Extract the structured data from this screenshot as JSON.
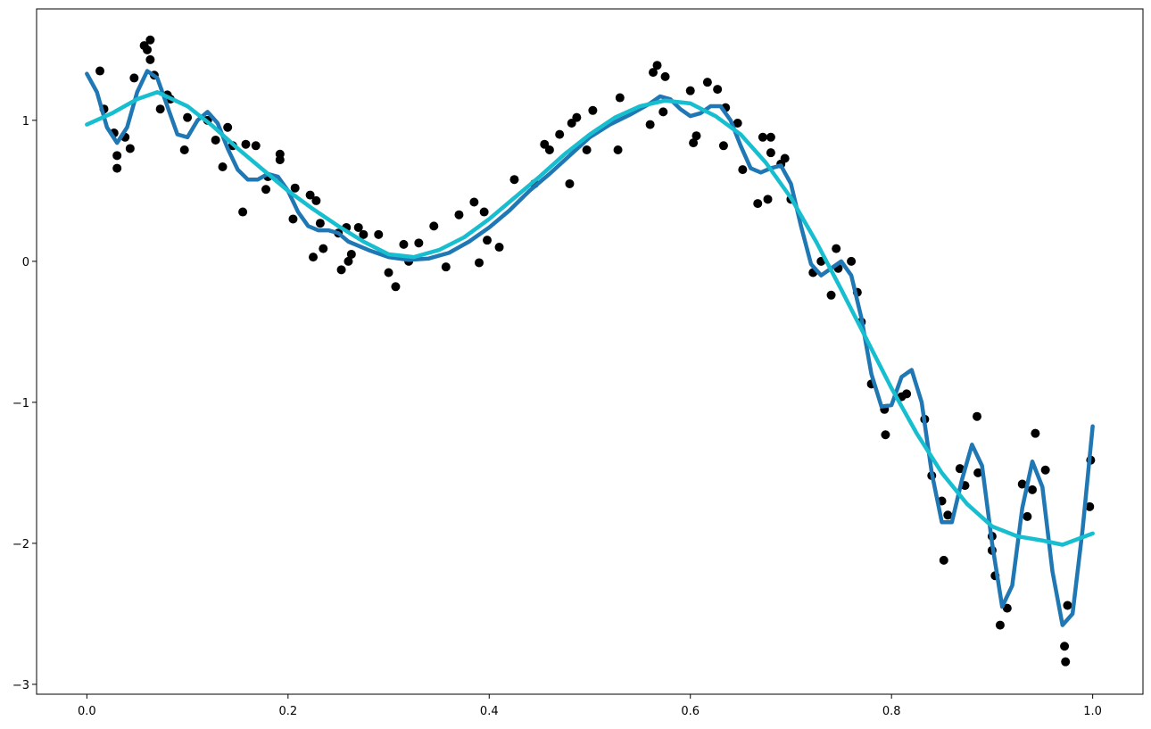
{
  "chart_data": {
    "type": "line",
    "xlim": [
      -0.05,
      1.05
    ],
    "ylim": [
      -3.07,
      1.79
    ],
    "xticks": [
      {
        "value": 0,
        "label": "0.0"
      },
      {
        "value": 0.2,
        "label": "0.2"
      },
      {
        "value": 0.4,
        "label": "0.4"
      },
      {
        "value": 0.6,
        "label": "0.6"
      },
      {
        "value": 0.8,
        "label": "0.8"
      },
      {
        "value": 1,
        "label": "1.0"
      }
    ],
    "yticks": [
      {
        "value": -3,
        "label": "−3"
      },
      {
        "value": -2,
        "label": "−2"
      },
      {
        "value": -1,
        "label": "−1"
      },
      0,
      1
    ],
    "series": [
      {
        "type": "scatter",
        "color": "#000000",
        "x": [
          0.013,
          0.017,
          0.027,
          0.03,
          0.03,
          0.038,
          0.043,
          0.047,
          0.057,
          0.06,
          0.063,
          0.063,
          0.067,
          0.073,
          0.08,
          0.083,
          0.097,
          0.1,
          0.12,
          0.128,
          0.135,
          0.14,
          0.145,
          0.155,
          0.158,
          0.168,
          0.178,
          0.18,
          0.192,
          0.192,
          0.205,
          0.207,
          0.222,
          0.225,
          0.228,
          0.232,
          0.235,
          0.25,
          0.253,
          0.258,
          0.26,
          0.263,
          0.27,
          0.275,
          0.29,
          0.3,
          0.307,
          0.315,
          0.32,
          0.33,
          0.345,
          0.357,
          0.37,
          0.385,
          0.39,
          0.395,
          0.398,
          0.41,
          0.425,
          0.445,
          0.455,
          0.46,
          0.47,
          0.48,
          0.482,
          0.487,
          0.497,
          0.503,
          0.528,
          0.53,
          0.56,
          0.563,
          0.567,
          0.573,
          0.575,
          0.6,
          0.603,
          0.606,
          0.617,
          0.627,
          0.633,
          0.635,
          0.647,
          0.652,
          0.667,
          0.672,
          0.677,
          0.68,
          0.68,
          0.69,
          0.694,
          0.7,
          0.722,
          0.73,
          0.74,
          0.745,
          0.747,
          0.76,
          0.766,
          0.77,
          0.78,
          0.793,
          0.794,
          0.81,
          0.815,
          0.833,
          0.84,
          0.85,
          0.852,
          0.856,
          0.868,
          0.873,
          0.885,
          0.886,
          0.9,
          0.9,
          0.903,
          0.908,
          0.915,
          0.93,
          0.935,
          0.94,
          0.943,
          0.953,
          0.972,
          0.973,
          0.975,
          0.997,
          0.998
        ],
        "values": [
          1.35,
          1.08,
          0.91,
          0.75,
          0.66,
          0.88,
          0.8,
          1.3,
          1.53,
          1.5,
          1.57,
          1.43,
          1.32,
          1.08,
          1.18,
          1.15,
          0.79,
          1.02,
          1.0,
          0.86,
          0.67,
          0.95,
          0.82,
          0.35,
          0.83,
          0.82,
          0.51,
          0.6,
          0.76,
          0.72,
          0.3,
          0.52,
          0.47,
          0.03,
          0.43,
          0.27,
          0.09,
          0.2,
          -0.06,
          0.24,
          0.0,
          0.05,
          0.24,
          0.19,
          0.19,
          -0.08,
          -0.18,
          0.12,
          0.0,
          0.13,
          0.25,
          -0.04,
          0.33,
          0.42,
          -0.01,
          0.35,
          0.15,
          0.1,
          0.58,
          0.55,
          0.83,
          0.79,
          0.9,
          0.55,
          0.98,
          1.02,
          0.79,
          1.07,
          0.79,
          1.16,
          0.97,
          1.34,
          1.39,
          1.06,
          1.31,
          1.21,
          0.84,
          0.89,
          1.27,
          1.22,
          0.82,
          1.09,
          0.98,
          0.65,
          0.41,
          0.88,
          0.44,
          0.88,
          0.77,
          0.69,
          0.73,
          0.44,
          -0.08,
          0.0,
          -0.24,
          0.09,
          -0.05,
          0.0,
          -0.22,
          -0.43,
          -0.87,
          -1.05,
          -1.23,
          -0.96,
          -0.94,
          -1.12,
          -1.52,
          -1.7,
          -2.12,
          -1.8,
          -1.47,
          -1.59,
          -1.1,
          -1.5,
          -1.95,
          -2.05,
          -2.23,
          -2.58,
          -2.46,
          -1.58,
          -1.81,
          -1.62,
          -1.22,
          -1.48,
          -2.73,
          -2.84,
          -2.44,
          -1.74,
          -1.41
        ]
      },
      {
        "type": "line",
        "color": "#1f77b4",
        "x": [
          0,
          0.01,
          0.02,
          0.03,
          0.04,
          0.05,
          0.06,
          0.07,
          0.08,
          0.09,
          0.1,
          0.11,
          0.12,
          0.13,
          0.14,
          0.15,
          0.16,
          0.17,
          0.18,
          0.19,
          0.2,
          0.21,
          0.22,
          0.23,
          0.24,
          0.25,
          0.26,
          0.28,
          0.3,
          0.32,
          0.34,
          0.36,
          0.38,
          0.4,
          0.42,
          0.44,
          0.46,
          0.48,
          0.5,
          0.52,
          0.54,
          0.56,
          0.57,
          0.58,
          0.59,
          0.6,
          0.61,
          0.62,
          0.63,
          0.64,
          0.65,
          0.66,
          0.67,
          0.68,
          0.69,
          0.7,
          0.71,
          0.72,
          0.73,
          0.74,
          0.75,
          0.76,
          0.77,
          0.78,
          0.79,
          0.8,
          0.81,
          0.82,
          0.83,
          0.84,
          0.85,
          0.86,
          0.87,
          0.88,
          0.89,
          0.9,
          0.91,
          0.92,
          0.93,
          0.94,
          0.95,
          0.96,
          0.97,
          0.98,
          0.99,
          1
        ],
        "values": [
          1.33,
          1.2,
          0.95,
          0.84,
          0.95,
          1.2,
          1.35,
          1.3,
          1.1,
          0.9,
          0.88,
          1.0,
          1.06,
          0.98,
          0.8,
          0.65,
          0.58,
          0.58,
          0.62,
          0.6,
          0.5,
          0.35,
          0.25,
          0.22,
          0.22,
          0.2,
          0.14,
          0.08,
          0.03,
          0.01,
          0.02,
          0.06,
          0.14,
          0.24,
          0.36,
          0.5,
          0.62,
          0.75,
          0.88,
          0.97,
          1.04,
          1.12,
          1.17,
          1.15,
          1.08,
          1.03,
          1.05,
          1.1,
          1.1,
          1.0,
          0.82,
          0.66,
          0.63,
          0.66,
          0.68,
          0.55,
          0.25,
          -0.02,
          -0.1,
          -0.05,
          0.0,
          -0.1,
          -0.4,
          -0.8,
          -1.03,
          -1.02,
          -0.82,
          -0.77,
          -1.0,
          -1.5,
          -1.85,
          -1.85,
          -1.55,
          -1.3,
          -1.45,
          -2.0,
          -2.45,
          -2.3,
          -1.75,
          -1.42,
          -1.6,
          -2.2,
          -2.58,
          -2.5,
          -1.9,
          -1.17
        ]
      },
      {
        "type": "line",
        "color": "#17becf",
        "x": [
          0,
          0.025,
          0.05,
          0.07,
          0.1,
          0.125,
          0.15,
          0.175,
          0.2,
          0.225,
          0.25,
          0.275,
          0.3,
          0.325,
          0.35,
          0.375,
          0.4,
          0.425,
          0.45,
          0.475,
          0.5,
          0.525,
          0.55,
          0.575,
          0.6,
          0.625,
          0.65,
          0.675,
          0.7,
          0.725,
          0.75,
          0.775,
          0.8,
          0.825,
          0.85,
          0.875,
          0.9,
          0.925,
          0.95,
          0.97,
          1
        ],
        "values": [
          0.97,
          1.05,
          1.15,
          1.2,
          1.1,
          0.96,
          0.8,
          0.65,
          0.5,
          0.37,
          0.25,
          0.14,
          0.05,
          0.03,
          0.08,
          0.17,
          0.3,
          0.45,
          0.6,
          0.76,
          0.9,
          1.02,
          1.1,
          1.14,
          1.12,
          1.03,
          0.9,
          0.7,
          0.45,
          0.14,
          -0.2,
          -0.55,
          -0.9,
          -1.22,
          -1.5,
          -1.72,
          -1.88,
          -1.95,
          -1.98,
          -2.01,
          -1.93
        ]
      }
    ]
  }
}
